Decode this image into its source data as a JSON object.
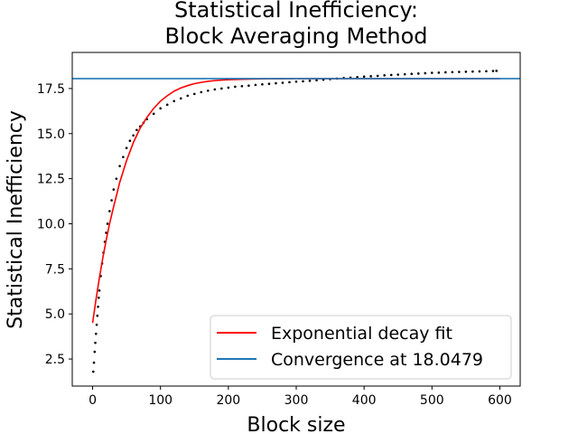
{
  "chart_data": {
    "type": "scatter",
    "title_lines": [
      "Statistical Inefficiency:",
      "Block Averaging Method"
    ],
    "xlabel": "Block size",
    "ylabel": "Statistical Inefficiency",
    "xlim": [
      -30,
      630
    ],
    "ylim": [
      1.0,
      19.5
    ],
    "xticks": [
      0,
      100,
      200,
      300,
      400,
      500,
      600
    ],
    "yticks": [
      2.5,
      5.0,
      7.5,
      10.0,
      12.5,
      15.0,
      17.5
    ],
    "xtick_labels": [
      "0",
      "100",
      "200",
      "300",
      "400",
      "500",
      "600"
    ],
    "ytick_labels": [
      "2.5",
      "5.0",
      "7.5",
      "10.0",
      "12.5",
      "15.0",
      "17.5"
    ],
    "grid": false,
    "legend_placement": "lower-right",
    "series": [
      {
        "kind": "scatter",
        "color": "#000000",
        "x": [
          1,
          2,
          3,
          4,
          5,
          6,
          7,
          8,
          9,
          10,
          12,
          14,
          16,
          18,
          20,
          22,
          25,
          28,
          31,
          35,
          40,
          45,
          50,
          55,
          60,
          65,
          70,
          75,
          80,
          90,
          100,
          110,
          120,
          130,
          140,
          150,
          160,
          170,
          180,
          190,
          200,
          210,
          220,
          230,
          240,
          250,
          260,
          270,
          280,
          290,
          300,
          310,
          320,
          330,
          340,
          350,
          360,
          370,
          380,
          390,
          400,
          410,
          420,
          430,
          440,
          450,
          460,
          470,
          480,
          490,
          500,
          510,
          520,
          530,
          540,
          550,
          560,
          570,
          580,
          590,
          595
        ],
        "y": [
          1.8,
          2.3,
          2.9,
          3.4,
          3.9,
          4.4,
          4.9,
          5.4,
          5.9,
          6.3,
          7.1,
          7.8,
          8.4,
          9.0,
          9.5,
          10.0,
          10.7,
          11.3,
          11.9,
          12.5,
          13.2,
          13.7,
          14.2,
          14.6,
          14.9,
          15.2,
          15.4,
          15.6,
          15.8,
          16.1,
          16.4,
          16.6,
          16.8,
          16.95,
          17.1,
          17.2,
          17.3,
          17.38,
          17.45,
          17.5,
          17.55,
          17.6,
          17.63,
          17.66,
          17.7,
          17.73,
          17.76,
          17.79,
          17.82,
          17.85,
          17.88,
          17.9,
          17.93,
          17.96,
          17.99,
          18.02,
          18.05,
          18.08,
          18.1,
          18.13,
          18.16,
          18.18,
          18.2,
          18.23,
          18.25,
          18.27,
          18.29,
          18.31,
          18.33,
          18.35,
          18.37,
          18.38,
          18.4,
          18.41,
          18.42,
          18.43,
          18.44,
          18.45,
          18.46,
          18.47,
          18.48
        ]
      },
      {
        "name": "Exponential decay fit",
        "kind": "line",
        "color": "#ff0000",
        "x": [
          0,
          5,
          10,
          15,
          20,
          25,
          30,
          40,
          50,
          60,
          70,
          80,
          90,
          100,
          110,
          120,
          130,
          140,
          150,
          160,
          170,
          180,
          190,
          200,
          220,
          240,
          260,
          280,
          300,
          320,
          340,
          360,
          380,
          400,
          450,
          500,
          550,
          600
        ],
        "y": [
          4.5,
          5.8,
          7.0,
          8.1,
          9.1,
          10.0,
          10.8,
          12.3,
          13.5,
          14.5,
          15.3,
          15.9,
          16.4,
          16.8,
          17.1,
          17.35,
          17.53,
          17.66,
          17.77,
          17.84,
          17.9,
          17.94,
          17.97,
          17.99,
          18.01,
          18.03,
          18.04,
          18.045,
          18.046,
          18.047,
          18.047,
          18.047,
          18.047,
          18.047,
          18.047,
          18.047,
          18.047,
          18.047
        ]
      },
      {
        "name": "Convergence at 18.0479",
        "kind": "hline",
        "color": "#1f77b4",
        "y": 18.0479
      }
    ]
  }
}
